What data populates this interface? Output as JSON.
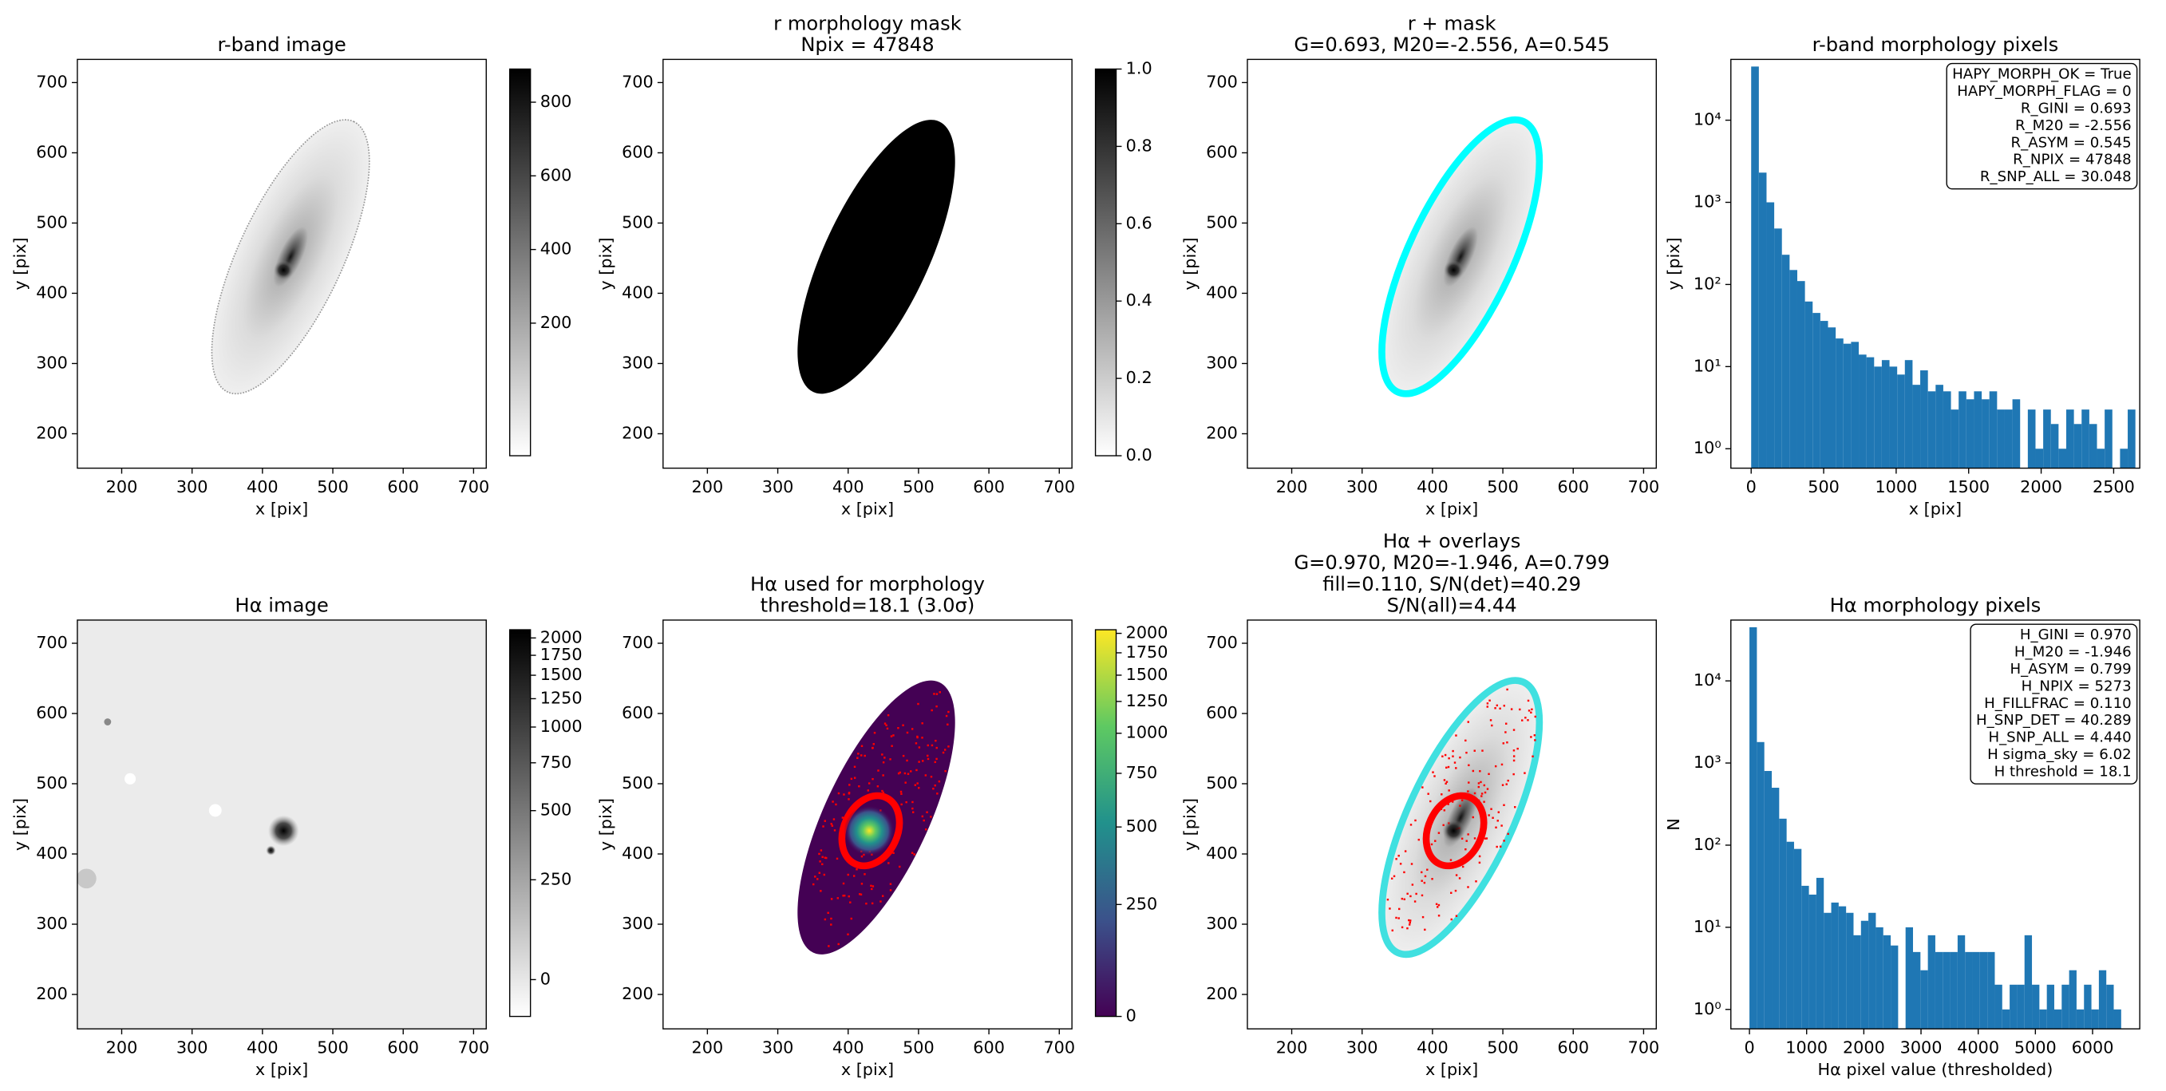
{
  "chart_data": [
    {
      "type": "image",
      "title": [
        "r-band image"
      ],
      "xlabel": "x [pix]",
      "ylabel": "y [pix]",
      "xlim": [
        137,
        718
      ],
      "ylim": [
        151,
        733
      ],
      "xticks": [
        200,
        300,
        400,
        500,
        600,
        700
      ],
      "yticks": [
        200,
        300,
        400,
        500,
        600,
        700
      ],
      "cmap": "gray_r",
      "colorbar": {
        "lim": [
          -160,
          890
        ],
        "ticks": [
          200,
          400,
          600,
          800
        ],
        "scale": "linear"
      }
    },
    {
      "type": "image",
      "title": [
        "r morphology mask",
        "Npix = 47848"
      ],
      "xlabel": "x [pix]",
      "ylabel": "y [pix]",
      "xlim": [
        137,
        718
      ],
      "ylim": [
        151,
        733
      ],
      "xticks": [
        200,
        300,
        400,
        500,
        600,
        700
      ],
      "yticks": [
        200,
        300,
        400,
        500,
        600,
        700
      ],
      "cmap": "gray_r",
      "colorbar": {
        "lim": [
          0,
          1
        ],
        "ticks": [
          {
            "value": 0,
            "label": "0.0"
          },
          0.2,
          0.4,
          0.6,
          0.8,
          {
            "value": 1,
            "label": "1.0"
          }
        ],
        "scale": "linear"
      }
    },
    {
      "type": "image",
      "title": [
        "r + mask",
        "G=0.693, M20=-2.556, A=0.545"
      ],
      "xlabel": "x [pix]",
      "ylabel": "y [pix]",
      "xlim": [
        137,
        718
      ],
      "ylim": [
        151,
        733
      ],
      "xticks": [
        200,
        300,
        400,
        500,
        600,
        700
      ],
      "yticks": [
        200,
        300,
        400,
        500,
        600,
        700
      ],
      "cmap": "gray_r"
    },
    {
      "type": "histogram",
      "title": [
        "r-band morphology pixels"
      ],
      "xlabel": "x [pix]",
      "ylabel": "y [pix]",
      "color": "#1f77b4",
      "log_y": true,
      "bins": [
        0,
        53,
        106,
        159,
        212,
        265,
        318,
        371,
        424,
        477,
        530,
        583,
        636,
        689,
        742,
        795,
        848,
        901,
        954,
        1007,
        1060,
        1113,
        1166,
        1219,
        1272,
        1325,
        1378,
        1431,
        1484,
        1537,
        1590,
        1643,
        1696,
        1749,
        1802,
        1855,
        1908,
        1961,
        2014,
        2067,
        2120,
        2173,
        2226,
        2279,
        2332,
        2385,
        2438,
        2491,
        2544,
        2597,
        2650
      ],
      "values": [
        45000,
        2300,
        1000,
        480,
        230,
        150,
        110,
        62,
        45,
        36,
        30,
        22,
        19,
        20,
        14,
        13,
        10,
        12,
        10,
        8,
        12,
        6,
        9,
        5,
        6,
        5,
        3,
        5,
        4,
        5,
        4,
        5,
        3,
        3,
        4,
        0,
        3,
        1,
        3,
        2,
        1,
        3,
        2,
        3,
        2,
        1,
        3,
        0,
        1,
        3
      ],
      "xlim": [
        -140,
        2680
      ],
      "xticks": [
        0,
        500,
        1000,
        1500,
        2000,
        2500
      ],
      "ylim": [
        0.58,
        55000
      ],
      "yticks": [
        {
          "value": 1,
          "label": "10⁰"
        },
        {
          "value": 10,
          "label": "10¹"
        },
        {
          "value": 100,
          "label": "10²"
        },
        {
          "value": 1000,
          "label": "10³"
        },
        {
          "value": 10000,
          "label": "10⁴"
        }
      ],
      "annotation": [
        "HAPY_MORPH_OK = True",
        "HAPY_MORPH_FLAG = 0",
        "R_GINI = 0.693",
        "R_M20 = -2.556",
        "R_ASYM = 0.545",
        "R_NPIX = 47848",
        "R_SNP_ALL = 30.048"
      ]
    },
    {
      "type": "image",
      "title": [
        "Hα image"
      ],
      "xlabel": "x [pix]",
      "ylabel": "y [pix]",
      "xlim": [
        137,
        718
      ],
      "ylim": [
        151,
        733
      ],
      "xticks": [
        200,
        300,
        400,
        500,
        600,
        700
      ],
      "yticks": [
        200,
        300,
        400,
        500,
        600,
        700
      ],
      "cmap": "gray_r",
      "colorbar": {
        "lim": [
          -85,
          2130
        ],
        "ticks": [
          0,
          250,
          500,
          750,
          1000,
          1250,
          1500,
          1750,
          2000
        ],
        "scale": "asinh"
      }
    },
    {
      "type": "image",
      "title": [
        "Hα used for morphology",
        "threshold=18.1 (3.0σ)"
      ],
      "xlabel": "x [pix]",
      "ylabel": "y [pix]",
      "xlim": [
        137,
        718
      ],
      "ylim": [
        151,
        733
      ],
      "xticks": [
        200,
        300,
        400,
        500,
        600,
        700
      ],
      "yticks": [
        200,
        300,
        400,
        500,
        600,
        700
      ],
      "cmap": "viridis",
      "colorbar": {
        "lim": [
          0,
          2050
        ],
        "ticks": [
          0,
          250,
          500,
          750,
          1000,
          1250,
          1500,
          1750,
          2000
        ],
        "scale": "asinh"
      }
    },
    {
      "type": "image",
      "title": [
        "Hα + overlays",
        "G=0.970, M20=-1.946, A=0.799",
        "fill=0.110, S/N(det)=40.29",
        "S/N(all)=4.44"
      ],
      "xlabel": "x [pix]",
      "ylabel": "y [pix]",
      "xlim": [
        137,
        718
      ],
      "ylim": [
        151,
        733
      ],
      "xticks": [
        200,
        300,
        400,
        500,
        600,
        700
      ],
      "yticks": [
        200,
        300,
        400,
        500,
        600,
        700
      ],
      "cmap": "gray_r"
    },
    {
      "type": "histogram",
      "title": [
        "Hα morphology pixels"
      ],
      "xlabel": "Hα pixel value (thresholded)",
      "ylabel": "N",
      "color": "#1f77b4",
      "log_y": true,
      "bins": [
        0,
        130,
        260,
        390,
        520,
        650,
        780,
        910,
        1040,
        1170,
        1300,
        1430,
        1560,
        1690,
        1820,
        1950,
        2080,
        2210,
        2340,
        2470,
        2600,
        2730,
        2860,
        2990,
        3120,
        3250,
        3380,
        3510,
        3640,
        3770,
        3900,
        4030,
        4160,
        4290,
        4420,
        4550,
        4680,
        4810,
        4940,
        5070,
        5200,
        5330,
        5460,
        5590,
        5720,
        5850,
        5980,
        6110,
        6240,
        6370,
        6500
      ],
      "values": [
        45000,
        1800,
        800,
        500,
        210,
        110,
        90,
        32,
        25,
        40,
        15,
        20,
        18,
        15,
        8,
        12,
        15,
        10,
        8,
        6,
        0,
        10,
        5,
        3,
        8,
        5,
        5,
        5,
        8,
        5,
        5,
        5,
        5,
        2,
        1,
        2,
        2,
        8,
        2,
        1,
        2,
        1,
        2,
        3,
        1,
        2,
        1,
        3,
        2,
        1
      ],
      "xlim": [
        -325,
        6825
      ],
      "xticks": [
        0,
        1000,
        2000,
        3000,
        4000,
        5000,
        6000
      ],
      "ylim": [
        0.58,
        55000
      ],
      "yticks": [
        {
          "value": 1,
          "label": "10⁰"
        },
        {
          "value": 10,
          "label": "10¹"
        },
        {
          "value": 100,
          "label": "10²"
        },
        {
          "value": 1000,
          "label": "10³"
        },
        {
          "value": 10000,
          "label": "10⁴"
        }
      ],
      "annotation": [
        "H_GINI = 0.970",
        "H_M20 = -1.946",
        "H_ASYM = 0.799",
        "H_NPIX = 5273",
        "H_FILLFRAC = 0.110",
        "H_SNP_DET = 40.289",
        "H_SNP_ALL = 4.440",
        "H sigma_sky = 6.02",
        "H threshold = 18.1"
      ]
    }
  ]
}
